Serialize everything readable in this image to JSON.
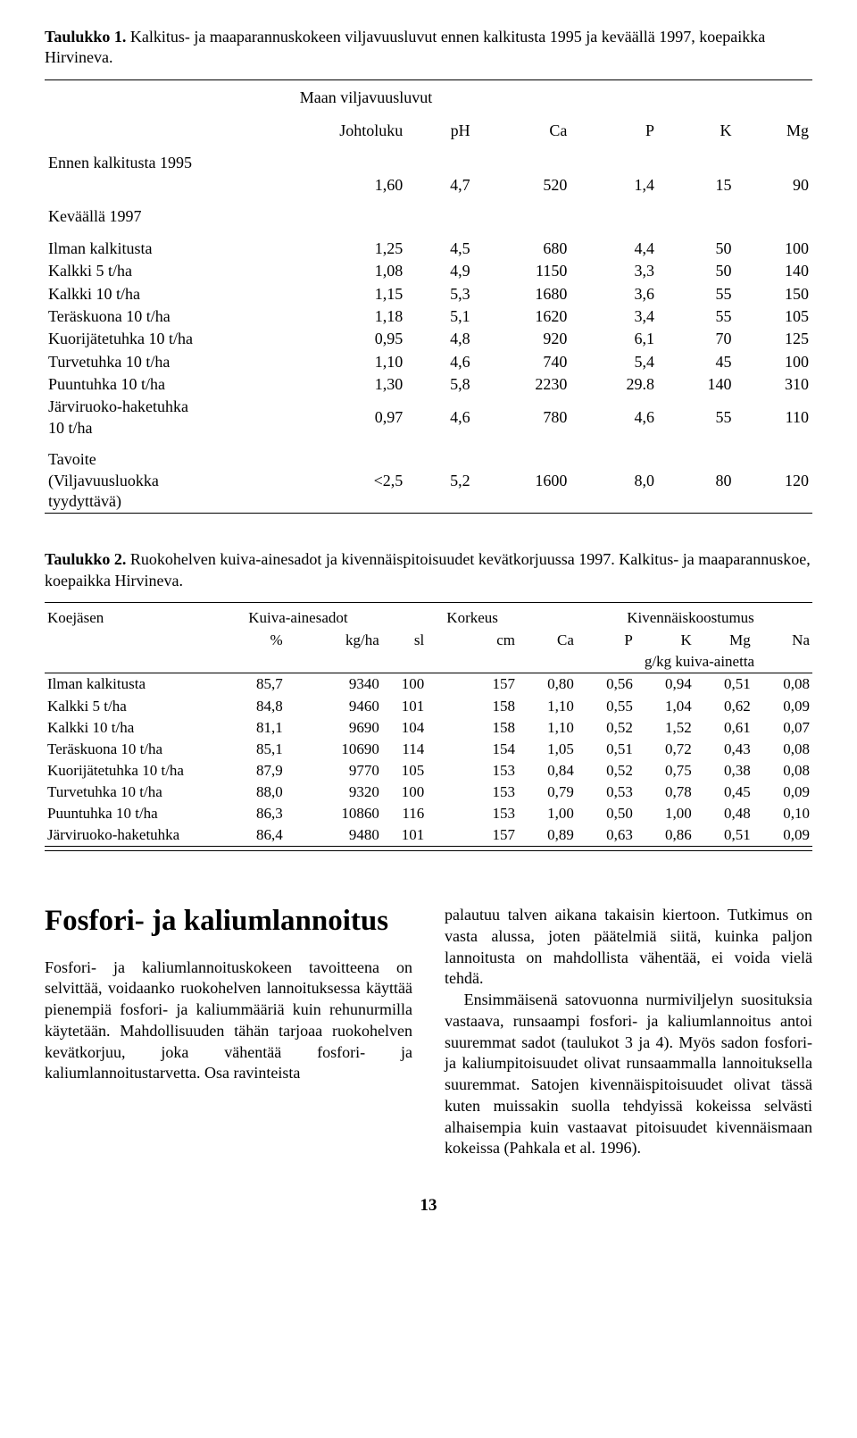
{
  "table1": {
    "caption_label": "Taulukko 1.",
    "caption_text": "Kalkitus- ja maaparannuskokeen viljavuusluvut ennen kalkitusta 1995 ja keväällä 1997, koepaikka Hirvineva.",
    "section_title": "Maan viljavuusluvut",
    "columns": [
      "",
      "Johtoluku",
      "pH",
      "Ca",
      "P",
      "K",
      "Mg"
    ],
    "group1_title": "Ennen kalkitusta 1995",
    "group1_row": [
      "",
      "1,60",
      "4,7",
      "520",
      "1,4",
      "15",
      "90"
    ],
    "group2_title": "Keväällä 1997",
    "rows2": [
      [
        "Ilman kalkitusta",
        "1,25",
        "4,5",
        "680",
        "4,4",
        "50",
        "100"
      ],
      [
        "Kalkki 5 t/ha",
        "1,08",
        "4,9",
        "1150",
        "3,3",
        "50",
        "140"
      ],
      [
        "Kalkki 10 t/ha",
        "1,15",
        "5,3",
        "1680",
        "3,6",
        "55",
        "150"
      ],
      [
        "Teräskuona 10 t/ha",
        "1,18",
        "5,1",
        "1620",
        "3,4",
        "55",
        "105"
      ],
      [
        "Kuorijätetuhka 10 t/ha",
        "0,95",
        "4,8",
        "920",
        "6,1",
        "70",
        "125"
      ],
      [
        "Turvetuhka 10 t/ha",
        "1,10",
        "4,6",
        "740",
        "5,4",
        "45",
        "100"
      ],
      [
        "Puuntuhka 10 t/ha",
        "1,30",
        "5,8",
        "2230",
        "29.8",
        "140",
        "310"
      ],
      [
        "Järviruoko-haketuhka\n10 t/ha",
        "0,97",
        "4,6",
        "780",
        "4,6",
        "55",
        "110"
      ]
    ],
    "tavoite_label": "Tavoite",
    "tavoite_note": "(Viljavuusluokka tyydyttävä)",
    "tavoite_row": [
      "<2,5",
      "5,2",
      "1600",
      "8,0",
      "80",
      "120"
    ]
  },
  "table2": {
    "caption_label": "Taulukko 2.",
    "caption_text": "Ruokohelven kuiva-ainesadot ja kivennäispitoisuudet kevätkorjuussa 1997. Kalkitus- ja maaparannuskoe, koepaikka Hirvineva.",
    "head_koejasen": "Koejäsen",
    "head_kuiva": "Kuiva-ainesadot",
    "head_korkeus": "Korkeus",
    "head_kiven": "Kivennäiskoostumus",
    "sub_pct": "%",
    "sub_kgha": "kg/ha",
    "sub_sl": "sl",
    "sub_cm": "cm",
    "sub_Ca": "Ca",
    "sub_P": "P",
    "sub_K": "K",
    "sub_Mg": "Mg",
    "sub_Na": "Na",
    "unit_line": "g/kg kuiva-ainetta",
    "rows": [
      [
        "Ilman kalkitusta",
        "85,7",
        "9340",
        "100",
        "157",
        "0,80",
        "0,56",
        "0,94",
        "0,51",
        "0,08"
      ],
      [
        "Kalkki 5 t/ha",
        "84,8",
        "9460",
        "101",
        "158",
        "1,10",
        "0,55",
        "1,04",
        "0,62",
        "0,09"
      ],
      [
        "Kalkki 10 t/ha",
        "81,1",
        "9690",
        "104",
        "158",
        "1,10",
        "0,52",
        "1,52",
        "0,61",
        "0,07"
      ],
      [
        "Teräskuona 10 t/ha",
        "85,1",
        "10690",
        "114",
        "154",
        "1,05",
        "0,51",
        "0,72",
        "0,43",
        "0,08"
      ],
      [
        "Kuorijätetuhka 10 t/ha",
        "87,9",
        "9770",
        "105",
        "153",
        "0,84",
        "0,52",
        "0,75",
        "0,38",
        "0,08"
      ],
      [
        "Turvetuhka 10 t/ha",
        "88,0",
        "9320",
        "100",
        "153",
        "0,79",
        "0,53",
        "0,78",
        "0,45",
        "0,09"
      ],
      [
        "Puuntuhka 10 t/ha",
        "86,3",
        "10860",
        "116",
        "153",
        "1,00",
        "0,50",
        "1,00",
        "0,48",
        "0,10"
      ],
      [
        "Järviruoko-haketuhka",
        "86,4",
        "9480",
        "101",
        "157",
        "0,89",
        "0,63",
        "0,86",
        "0,51",
        "0,09"
      ]
    ]
  },
  "heading": "Fosfori- ja kaliumlannoitus",
  "left_para": "Fosfori- ja kaliumlannoituskokeen tavoitteena on selvittää, voidaanko ruokohelven lannoituksessa käyttää pienempiä fosfori- ja kaliummääriä kuin rehunurmilla käytetään. Mahdollisuuden tähän tarjoaa ruokohelven kevätkorjuu, joka vähentää fosfori- ja kaliumlannoitustarvetta. Osa ravinteista",
  "right_p1": "palautuu talven aikana takaisin kiertoon. Tutkimus on vasta alussa, joten päätelmiä siitä, kuinka paljon lannoitusta on mahdollista vähentää, ei voida vielä tehdä.",
  "right_p2": "Ensimmäisenä satovuonna nurmiviljelyn suosituksia vastaava, runsaampi fosfori- ja kaliumlannoitus antoi suuremmat sadot (taulukot 3 ja 4). Myös sadon fosfori- ja kaliumpitoisuudet olivat runsaammalla lannoituksella suuremmat. Satojen kivennäispitoisuudet olivat tässä kuten muissakin suolla tehdyissä kokeissa selvästi alhaisempia kuin vastaavat pitoisuudet kivennäismaan kokeissa (Pahkala et al. 1996).",
  "page_number": "13"
}
